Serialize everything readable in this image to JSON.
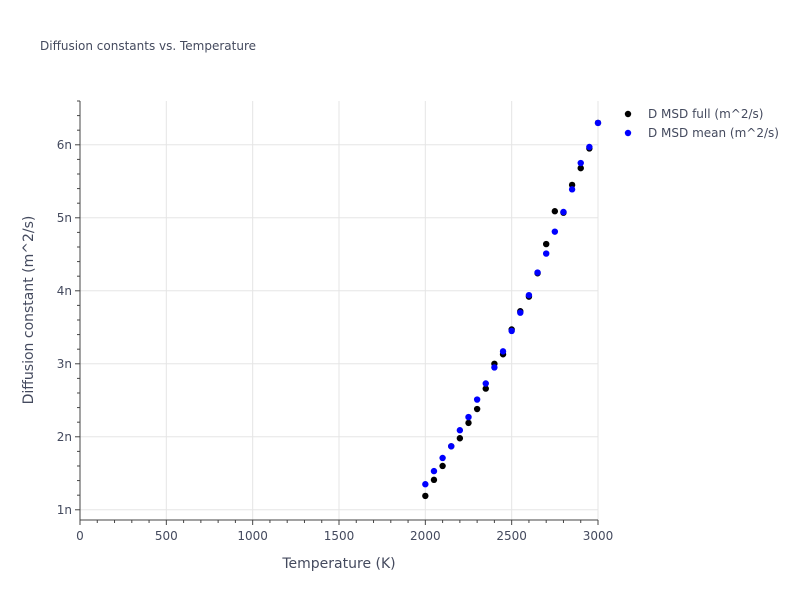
{
  "chart_data": {
    "type": "scatter",
    "title": "Diffusion constants vs. Temperature",
    "xlabel": "Temperature (K)",
    "ylabel": "Diffusion constant (m^2/s)",
    "xlim": [
      0,
      3000
    ],
    "ylim": [
      0.86,
      6.6
    ],
    "x_ticks": [
      0,
      500,
      1000,
      1500,
      2000,
      2500,
      3000
    ],
    "x_tick_labels": [
      "0",
      "500",
      "1000",
      "1500",
      "2000",
      "2500",
      "3000"
    ],
    "y_ticks": [
      1,
      2,
      3,
      4,
      5,
      6
    ],
    "y_tick_labels": [
      "1n",
      "2n",
      "3n",
      "4n",
      "5n",
      "6n"
    ],
    "grid": true,
    "legend_position": "top-right",
    "series": [
      {
        "name": "D MSD full (m^2/s)",
        "color": "#000000",
        "x": [
          2000,
          2050,
          2100,
          2150,
          2200,
          2250,
          2300,
          2350,
          2400,
          2450,
          2500,
          2550,
          2600,
          2650,
          2700,
          2750,
          2800,
          2850,
          2900,
          2950,
          3000
        ],
        "y": [
          1.19,
          1.41,
          1.6,
          1.87,
          1.98,
          2.19,
          2.38,
          2.66,
          3.0,
          3.13,
          3.47,
          3.72,
          3.92,
          4.24,
          4.64,
          5.09,
          5.07,
          5.45,
          5.68,
          5.95,
          6.3
        ]
      },
      {
        "name": "D MSD mean (m^2/s)",
        "color": "#0000ff",
        "x": [
          2000,
          2050,
          2100,
          2150,
          2200,
          2250,
          2300,
          2350,
          2400,
          2450,
          2500,
          2550,
          2600,
          2650,
          2700,
          2750,
          2800,
          2850,
          2900,
          2950,
          3000
        ],
        "y": [
          1.35,
          1.53,
          1.71,
          1.87,
          2.09,
          2.27,
          2.51,
          2.73,
          2.95,
          3.17,
          3.45,
          3.7,
          3.94,
          4.25,
          4.51,
          4.81,
          5.08,
          5.39,
          5.75,
          5.97,
          6.3
        ]
      }
    ]
  }
}
